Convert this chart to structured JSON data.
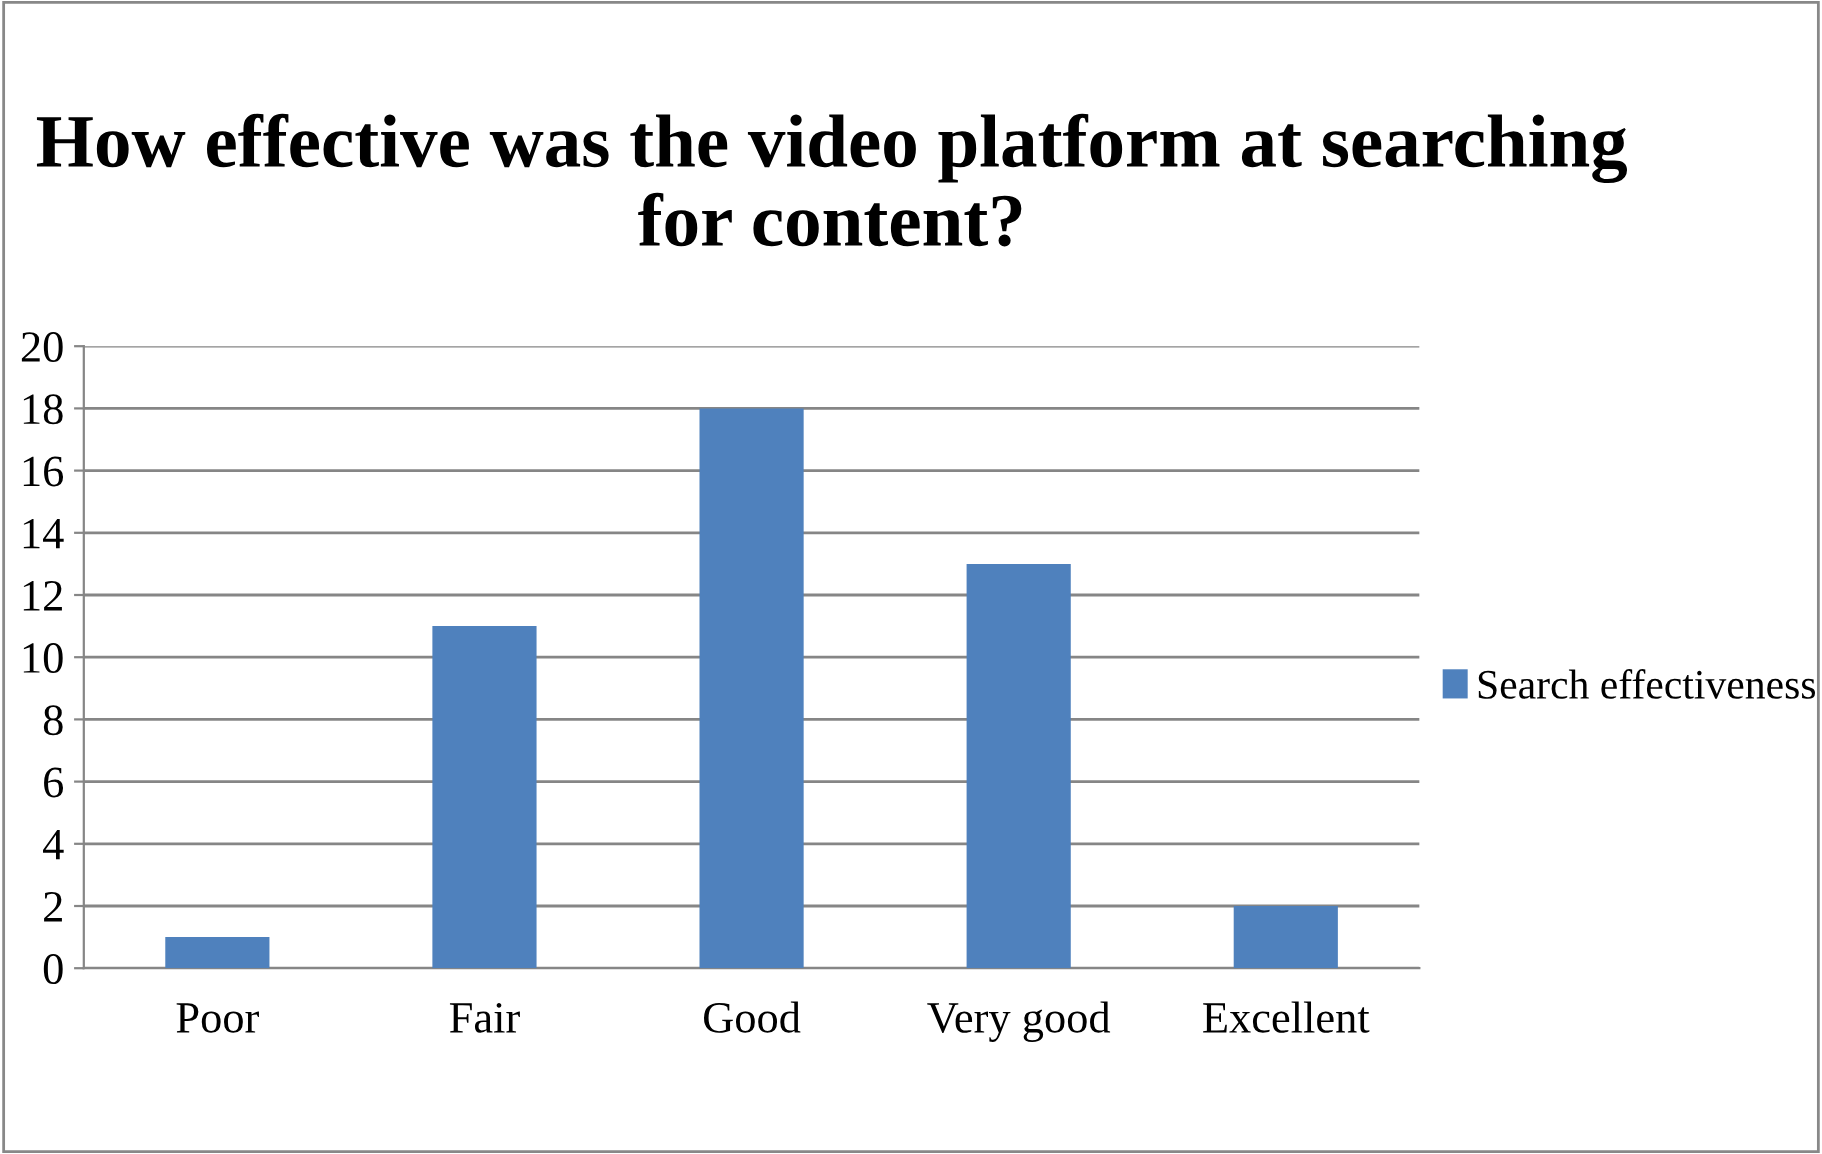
{
  "chart_data": {
    "type": "bar",
    "title": "How effective was the video platform at searching for content?",
    "categories": [
      "Poor",
      "Fair",
      "Good",
      "Very good",
      "Excellent"
    ],
    "series": [
      {
        "name": "Search effectiveness",
        "color": "#4f81bd",
        "values": [
          1,
          11,
          18,
          13,
          2
        ]
      }
    ],
    "ylim": [
      0,
      20
    ],
    "yticks": [
      0,
      2,
      4,
      6,
      8,
      10,
      12,
      14,
      16,
      18,
      20
    ],
    "grid": "y",
    "legend": "right"
  }
}
